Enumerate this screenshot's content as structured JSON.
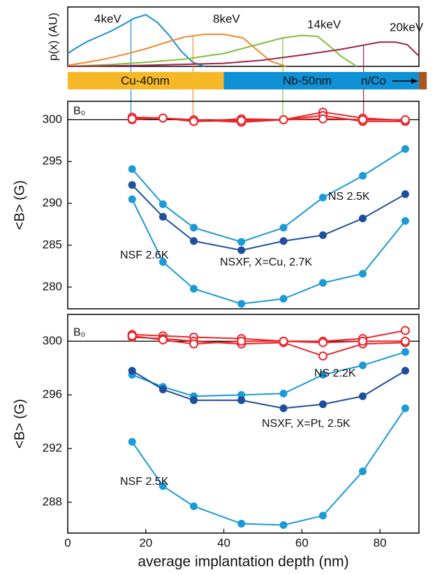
{
  "chart_data": [
    {
      "type": "line",
      "ylabel": "p(x) (AU)",
      "xlim": [
        0,
        90
      ],
      "ylim": [
        0,
        1.15
      ],
      "series": [
        {
          "name": "4keV",
          "color": "#1b8fd2",
          "mean": 16.2,
          "x": [
            0,
            2,
            5,
            8,
            11,
            14,
            17,
            20,
            23,
            26,
            29,
            32,
            35
          ],
          "values": [
            0.25,
            0.35,
            0.48,
            0.58,
            0.68,
            0.8,
            0.93,
            1.0,
            0.85,
            0.6,
            0.3,
            0.08,
            0.0
          ]
        },
        {
          "name": "8keV",
          "color": "#ef8a2e",
          "mean": 32.1,
          "x": [
            0,
            5,
            10,
            15,
            20,
            25,
            30,
            35,
            40,
            45,
            48,
            52,
            56
          ],
          "values": [
            0.02,
            0.08,
            0.15,
            0.24,
            0.34,
            0.46,
            0.57,
            0.62,
            0.62,
            0.55,
            0.35,
            0.1,
            0.0
          ]
        },
        {
          "name": "14keV",
          "color": "#7fbf3f",
          "mean": 55.1,
          "x": [
            0,
            10,
            20,
            30,
            40,
            50,
            55,
            60,
            64,
            67,
            70,
            74
          ],
          "values": [
            0.0,
            0.03,
            0.08,
            0.14,
            0.25,
            0.45,
            0.55,
            0.6,
            0.58,
            0.4,
            0.2,
            0.0
          ]
        },
        {
          "name": "20keV",
          "color": "#a0224a",
          "mean": 75.8,
          "x": [
            0,
            20,
            40,
            50,
            60,
            70,
            75,
            80,
            84,
            87,
            90
          ],
          "values": [
            0,
            0.02,
            0.06,
            0.12,
            0.22,
            0.33,
            0.4,
            0.47,
            0.47,
            0.42,
            0.2
          ]
        }
      ]
    },
    {
      "type": "stacked-bar",
      "xlim": [
        0,
        90
      ],
      "categories": [
        "Cu-40nm",
        "Nb-50nm",
        "n/Co"
      ],
      "values": [
        40,
        50,
        2
      ],
      "colors": [
        "#f6b826",
        "#0f91d6",
        "#a8561f"
      ]
    },
    {
      "type": "scatter-line",
      "ylabel": "<B> (G)",
      "xlim": [
        0,
        90
      ],
      "ylim": [
        277.4,
        302.2
      ],
      "yticks": [
        280,
        285,
        290,
        295,
        300
      ],
      "reference": {
        "value": 300,
        "label": "B₀"
      },
      "x": [
        16.5,
        24.4,
        32.3,
        44.5,
        55.3,
        65.4,
        75.6,
        86.5
      ],
      "series": [
        {
          "color": "#e8262b",
          "open": true,
          "values": [
            300.3,
            300.2,
            299.8,
            300.1,
            300.0,
            300.9,
            300.2,
            299.9
          ]
        },
        {
          "color": "#e8262b",
          "open": true,
          "values": [
            300.0,
            300.2,
            300.0,
            299.7,
            300.0,
            300.5,
            299.8,
            299.8
          ]
        },
        {
          "color": "#e8262b",
          "open": true,
          "values": [
            300.1,
            300.2,
            299.8,
            299.9,
            300.0,
            300.1,
            300.0,
            300.0
          ]
        },
        {
          "name": "NS 2.5K",
          "color": "#1a9ad6",
          "values": [
            294.1,
            289.9,
            287.1,
            285.4,
            287.1,
            290.7,
            293.3,
            296.5
          ]
        },
        {
          "name": "NSXF, X=Cu, 2.7K",
          "color": "#1f4e9c",
          "values": [
            292.2,
            288.4,
            285.5,
            284.4,
            285.5,
            286.2,
            288.2,
            291.1
          ]
        },
        {
          "name": "NSF 2.6K",
          "color": "#1a9ad6",
          "values": [
            290.5,
            283.0,
            279.8,
            278.0,
            278.6,
            280.5,
            281.6,
            287.9
          ]
        }
      ]
    },
    {
      "type": "scatter-line",
      "ylabel": "<B> (G)",
      "xlabel": "average implantation depth (nm)",
      "xlim": [
        0,
        90
      ],
      "ylim": [
        285.7,
        302
      ],
      "yticks": [
        288,
        292,
        296,
        300
      ],
      "xticks": [
        0,
        20,
        40,
        60,
        80
      ],
      "reference": {
        "value": 300,
        "label": "B₀"
      },
      "x": [
        16.5,
        24.4,
        32.3,
        44.5,
        55.3,
        65.4,
        75.6,
        86.5
      ],
      "series": [
        {
          "color": "#e8262b",
          "open": true,
          "values": [
            300.5,
            300.4,
            300.3,
            300.2,
            300.0,
            300.0,
            300.2,
            300.8
          ]
        },
        {
          "color": "#e8262b",
          "open": true,
          "values": [
            300.3,
            300.2,
            300.0,
            299.8,
            299.9,
            298.9,
            299.8,
            299.9
          ]
        },
        {
          "color": "#e8262b",
          "open": true,
          "values": [
            300.4,
            300.1,
            299.8,
            300.0,
            300.0,
            299.9,
            300.0,
            300.0
          ]
        },
        {
          "name": "NS 2.2K",
          "color": "#1a9ad6",
          "values": [
            297.5,
            296.6,
            295.9,
            296.0,
            296.1,
            297.5,
            298.2,
            299.2
          ]
        },
        {
          "name": "NSXF, X=Pt, 2.5K",
          "color": "#1f4e9c",
          "values": [
            297.8,
            296.4,
            295.6,
            295.6,
            295.0,
            295.3,
            295.9,
            297.8
          ]
        },
        {
          "name": "NSF 2.5K",
          "color": "#1a9ad6",
          "values": [
            292.5,
            289.2,
            287.7,
            286.4,
            286.3,
            287.0,
            290.3,
            295.0
          ]
        }
      ]
    }
  ]
}
